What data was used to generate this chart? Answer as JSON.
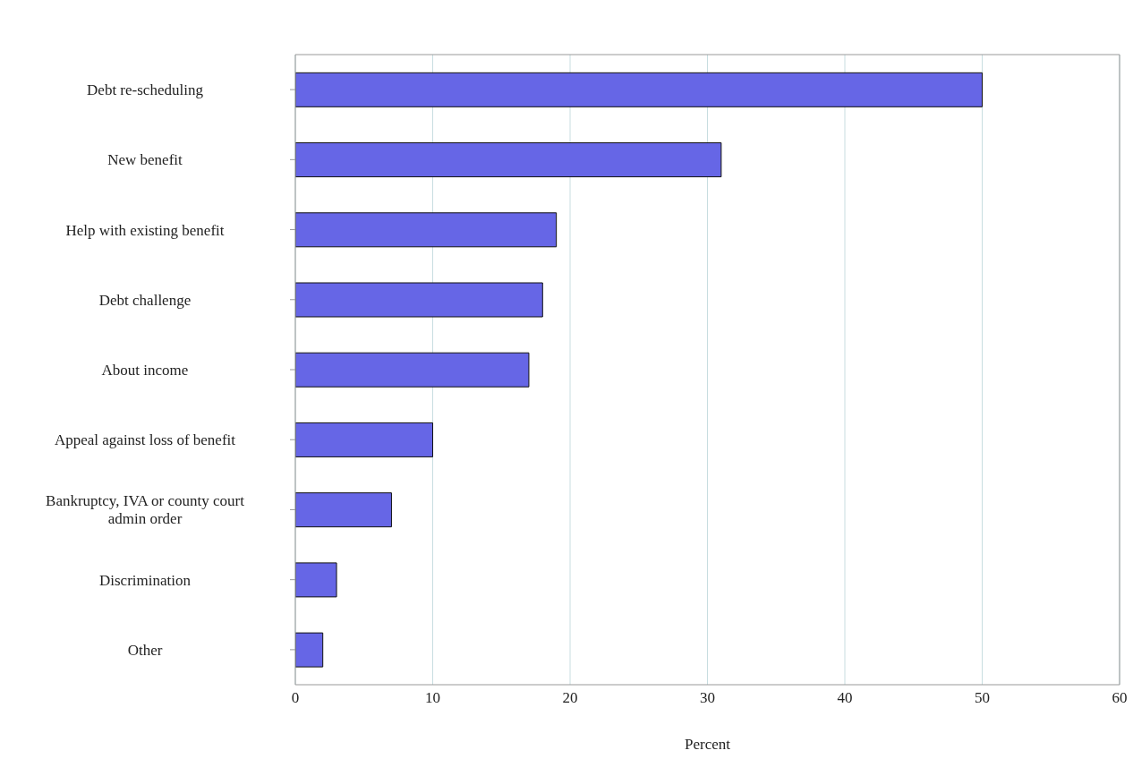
{
  "chart_data": {
    "type": "bar",
    "orientation": "horizontal",
    "xlabel": "Percent",
    "categories": [
      "Debt re-scheduling",
      "New benefit",
      "Help with existing benefit",
      "Debt challenge",
      "About income",
      "Appeal against loss of benefit",
      "Bankruptcy, IVA or county court admin order",
      "Discrimination",
      "Other"
    ],
    "values": [
      50,
      31,
      19,
      18,
      17,
      10,
      7,
      3,
      2
    ],
    "color": "#6666e6",
    "xlim": [
      0,
      60
    ],
    "xticks": [
      0,
      10,
      20,
      30,
      40,
      50,
      60
    ],
    "grid": "x"
  }
}
